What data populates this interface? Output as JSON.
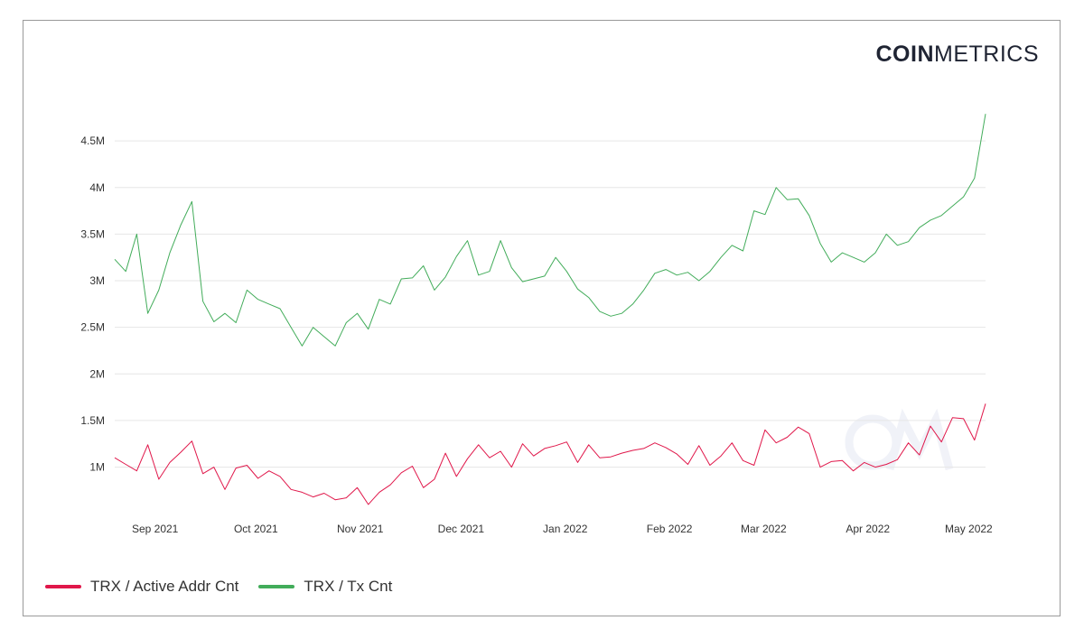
{
  "logo": {
    "bold": "COIN",
    "light": "METRICS"
  },
  "chart_data": {
    "type": "line",
    "title": "",
    "xlabel": "",
    "ylabel": "",
    "x_ticks": [
      "Sep 2021",
      "Oct 2021",
      "Nov 2021",
      "Dec 2021",
      "Jan 2022",
      "Feb 2022",
      "Mar 2022",
      "Apr 2022",
      "May 2022"
    ],
    "y_ticks": [
      {
        "value": 1000000,
        "label": "1M"
      },
      {
        "value": 1500000,
        "label": "1.5M"
      },
      {
        "value": 2000000,
        "label": "2M"
      },
      {
        "value": 2500000,
        "label": "2.5M"
      },
      {
        "value": 3000000,
        "label": "3M"
      },
      {
        "value": 3500000,
        "label": "3.5M"
      },
      {
        "value": 4000000,
        "label": "4M"
      },
      {
        "value": 4500000,
        "label": "4.5M"
      }
    ],
    "x_range": [
      "2021-08-20",
      "2022-05-06"
    ],
    "ylim": [
      560000,
      4850000
    ],
    "grid": "horizontal",
    "legend_position": "bottom-left",
    "series": [
      {
        "name": "TRX / Active Addr Cnt",
        "color": "#e0174a",
        "start": "2021-08-20",
        "step": "weekly",
        "values": [
          1100000,
          1030000,
          960000,
          1240000,
          870000,
          1050000,
          1160000,
          1280000,
          930000,
          1000000,
          760000,
          990000,
          1020000,
          880000,
          960000,
          900000,
          760000,
          730000,
          680000,
          720000,
          650000,
          670000,
          780000,
          600000,
          730000,
          810000,
          940000,
          1010000,
          780000,
          870000,
          1150000,
          900000,
          1090000,
          1240000,
          1100000,
          1170000,
          1000000,
          1250000,
          1120000,
          1200000,
          1230000,
          1270000,
          1050000,
          1240000,
          1100000,
          1110000,
          1150000,
          1180000,
          1200000,
          1260000,
          1210000,
          1140000,
          1030000,
          1230000,
          1020000,
          1120000,
          1260000,
          1070000,
          1020000,
          1400000,
          1260000,
          1320000,
          1430000,
          1360000,
          1000000,
          1060000,
          1070000,
          960000,
          1050000,
          1000000,
          1030000,
          1080000,
          1260000,
          1130000,
          1440000,
          1270000,
          1530000,
          1520000,
          1290000,
          1680000
        ]
      },
      {
        "name": "TRX / Tx Cnt",
        "color": "#42ac5a",
        "start": "2021-08-20",
        "step": "weekly",
        "values": [
          3230000,
          3100000,
          3500000,
          2650000,
          2900000,
          3300000,
          3600000,
          3850000,
          2780000,
          2560000,
          2650000,
          2550000,
          2900000,
          2800000,
          2750000,
          2700000,
          2500000,
          2300000,
          2500000,
          2400000,
          2300000,
          2550000,
          2650000,
          2480000,
          2800000,
          2750000,
          3020000,
          3030000,
          3160000,
          2900000,
          3040000,
          3260000,
          3430000,
          3060000,
          3100000,
          3430000,
          3140000,
          2990000,
          3020000,
          3050000,
          3250000,
          3100000,
          2910000,
          2820000,
          2670000,
          2620000,
          2650000,
          2750000,
          2900000,
          3080000,
          3120000,
          3060000,
          3090000,
          3000000,
          3100000,
          3250000,
          3380000,
          3320000,
          3750000,
          3710000,
          4000000,
          3870000,
          3880000,
          3700000,
          3400000,
          3200000,
          3300000,
          3250000,
          3200000,
          3300000,
          3500000,
          3380000,
          3420000,
          3570000,
          3650000,
          3700000,
          3800000,
          3900000,
          4100000,
          4790000
        ]
      }
    ]
  }
}
